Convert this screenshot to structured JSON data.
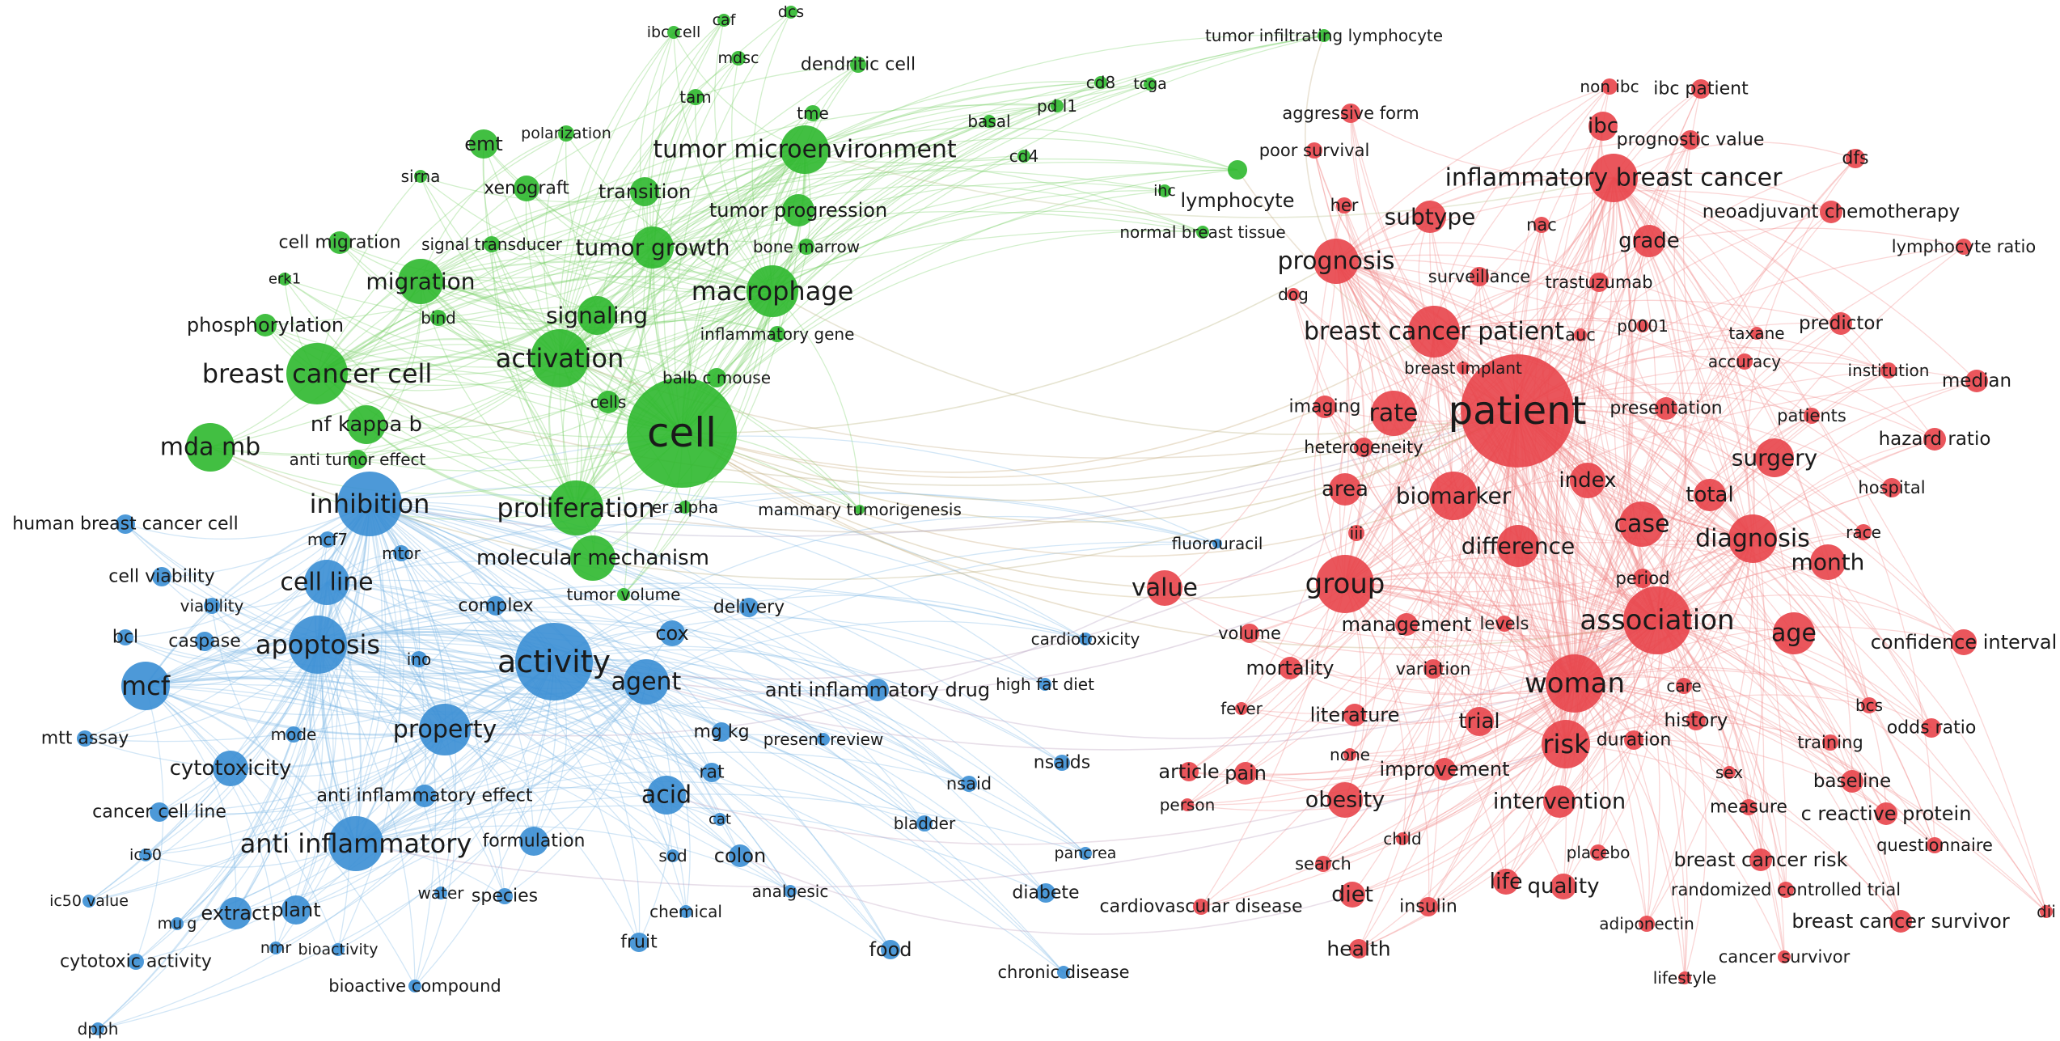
{
  "clusters": [
    {
      "id": "green",
      "color": "#2db82d",
      "terms": [
        "cell",
        "tumor microenvironment",
        "macrophage",
        "breast cancer cell",
        "activation",
        "signaling",
        "tumor growth",
        "tumor progression",
        "migration",
        "proliferation",
        "molecular mechanism",
        "mda mb",
        "nf kappa b",
        "transition",
        "emt",
        "xenograft",
        "cells",
        "balb c mouse",
        "inflammatory gene",
        "bone marrow",
        "signal transducer",
        "cell migration",
        "phosphorylation",
        "bind",
        "polarization",
        "sirna",
        "erk1",
        "tam",
        "tme",
        "mdsc",
        "caf",
        "dcs",
        "ibc cell",
        "dendritic cell",
        "anti tumor effect",
        "er alpha",
        "mammary tumorigenesis",
        "tumor volume",
        "basal",
        "pd l1",
        "cd8",
        "tcga",
        "cd4",
        "ihc",
        "lymphocyte",
        "normal breast tissue",
        "tumor infiltrating lymphocyte"
      ]
    },
    {
      "id": "blue",
      "color": "#3a8ed4",
      "terms": [
        "activity",
        "inhibition",
        "apoptosis",
        "cell line",
        "mcf",
        "property",
        "agent",
        "acid",
        "anti inflammatory",
        "cytotoxicity",
        "anti inflammatory effect",
        "formulation",
        "cox",
        "delivery",
        "anti inflammatory drug",
        "mg kg",
        "rat",
        "colon",
        "cat",
        "sod",
        "human breast cancer cell",
        "cell viability",
        "viability",
        "caspase",
        "bcl",
        "mcf7",
        "mtor",
        "ino",
        "complex",
        "mode",
        "mtt assay",
        "cancer cell line",
        "ic50",
        "ic50 value",
        "mu g",
        "extract",
        "plant",
        "nmr",
        "bioactivity",
        "cytotoxic activity",
        "dpph",
        "bioactive compound",
        "water",
        "species",
        "chemical",
        "fruit",
        "analgesic",
        "food",
        "nsaid",
        "nsaids",
        "bladder",
        "pancrea",
        "diabete",
        "chronic disease",
        "present review",
        "high fat diet",
        "cardiotoxicity",
        "fluorouracil"
      ]
    },
    {
      "id": "red",
      "color": "#e8444a",
      "terms": [
        "patient",
        "inflammatory breast cancer",
        "breast cancer patient",
        "prognosis",
        "group",
        "association",
        "woman",
        "risk",
        "diagnosis",
        "biomarker",
        "rate",
        "case",
        "surgery",
        "index",
        "total",
        "difference",
        "area",
        "age",
        "month",
        "value",
        "subtype",
        "grade",
        "ibc",
        "non ibc",
        "ibc patient",
        "prognostic value",
        "aggressive form",
        "poor survival",
        "her",
        "nac",
        "dfs",
        "neoadjuvant chemotherapy",
        "lymphocyte ratio",
        "surveillance",
        "trastuzumab",
        "dog",
        "auc",
        "p0001",
        "taxane",
        "predictor",
        "accuracy",
        "institution",
        "median",
        "breast implant",
        "imaging",
        "presentation",
        "patients",
        "hazard ratio",
        "heterogeneity",
        "hospital",
        "race",
        "iii",
        "period",
        "management",
        "levels",
        "confidence interval",
        "volume",
        "mortality",
        "variation",
        "care",
        "bcs",
        "odds ratio",
        "literature",
        "trial",
        "history",
        "training",
        "fever",
        "none",
        "duration",
        "sex",
        "baseline",
        "improvement",
        "c reactive protein",
        "article",
        "pain",
        "obesity",
        "intervention",
        "measure",
        "person",
        "questionnaire",
        "child",
        "placebo",
        "breast cancer risk",
        "search",
        "randomized controlled trial",
        "diet",
        "insulin",
        "life",
        "quality",
        "cardiovascular disease",
        "adiponectin",
        "breast cancer survivor",
        "dii",
        "health",
        "cancer survivor",
        "lifestyle"
      ]
    }
  ]
}
